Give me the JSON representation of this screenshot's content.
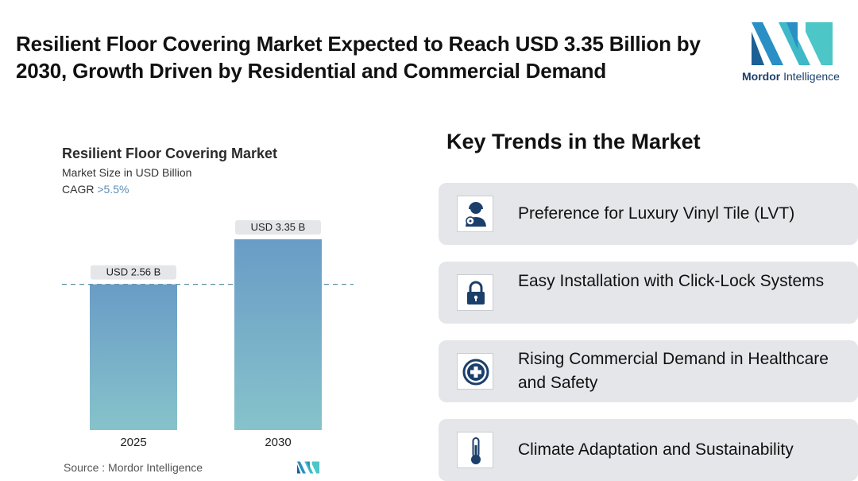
{
  "header": {
    "title": "Resilient Floor Covering Market Expected to Reach USD 3.35 Billion by 2030, Growth Driven by Residential and Commercial Demand",
    "logo_text_bold": "Mordor",
    "logo_text": "Intelligence"
  },
  "chart_panel": {
    "title": "Resilient Floor Covering Market",
    "subtitle": "Market Size in USD Billion",
    "cagr_label": "CAGR",
    "cagr_value": ">5.5%",
    "source": "Source :  Mordor Intelligence"
  },
  "chart_data": {
    "type": "bar",
    "title": "Resilient Floor Covering Market",
    "ylabel": "Market Size in USD Billion",
    "categories": [
      "2025",
      "2030"
    ],
    "values": [
      2.56,
      3.35
    ],
    "data_labels": [
      "USD 2.56 B",
      "USD 3.35 B"
    ],
    "ylim": [
      0,
      3.35
    ],
    "grid": false,
    "reference_line": 2.56
  },
  "trends": {
    "title": "Key Trends in the Market",
    "items": [
      {
        "label": "Preference for Luxury Vinyl Tile (LVT)",
        "icon": "worker-icon"
      },
      {
        "label": "Easy Installation with Click-Lock Systems",
        "icon": "lock-icon"
      },
      {
        "label": "Rising Commercial Demand in Healthcare and Safety",
        "icon": "medical-cross-icon"
      },
      {
        "label": "Climate Adaptation and Sustainability",
        "icon": "thermometer-icon"
      }
    ]
  },
  "colors": {
    "bar_top": "#6a9cc6",
    "bar_bottom": "#86c3cb",
    "label_bg": "#e4e6e9",
    "accent_dark": "#1b3f6b",
    "card_bg": "#e4e6e9"
  }
}
